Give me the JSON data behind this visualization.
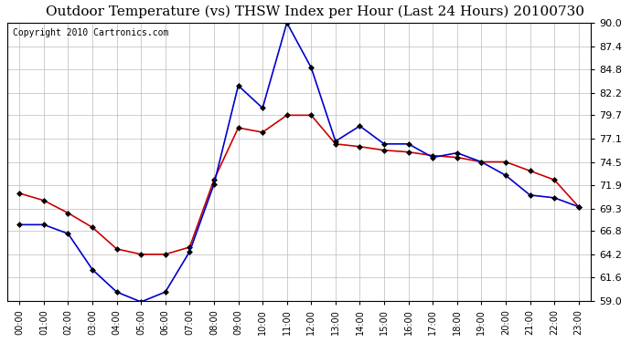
{
  "title": "Outdoor Temperature (vs) THSW Index per Hour (Last 24 Hours) 20100730",
  "copyright": "Copyright 2010 Cartronics.com",
  "hours": [
    "00:00",
    "01:00",
    "02:00",
    "03:00",
    "04:00",
    "05:00",
    "06:00",
    "07:00",
    "08:00",
    "09:00",
    "10:00",
    "11:00",
    "12:00",
    "13:00",
    "14:00",
    "15:00",
    "16:00",
    "17:00",
    "18:00",
    "19:00",
    "20:00",
    "21:00",
    "22:00",
    "23:00"
  ],
  "temp_red": [
    71.0,
    70.2,
    68.8,
    67.2,
    64.8,
    64.2,
    64.2,
    65.0,
    72.5,
    78.3,
    77.8,
    79.7,
    79.7,
    76.5,
    76.2,
    75.8,
    75.6,
    75.2,
    75.0,
    74.5,
    74.5,
    73.5,
    72.5,
    69.5
  ],
  "thsw_blue": [
    67.5,
    67.5,
    66.5,
    62.5,
    60.0,
    58.9,
    60.0,
    64.5,
    72.0,
    83.0,
    80.5,
    90.0,
    85.0,
    76.8,
    78.5,
    76.5,
    76.5,
    75.0,
    75.5,
    74.5,
    73.0,
    70.8,
    70.5,
    69.5
  ],
  "ylim": [
    59.0,
    90.0
  ],
  "yticks": [
    59.0,
    61.6,
    64.2,
    66.8,
    69.3,
    71.9,
    74.5,
    77.1,
    79.7,
    82.2,
    84.8,
    87.4,
    90.0
  ],
  "background_color": "#ffffff",
  "grid_color": "#bbbbbb",
  "line_color_red": "#cc0000",
  "line_color_blue": "#0000cc",
  "title_fontsize": 11,
  "copyright_fontsize": 7
}
